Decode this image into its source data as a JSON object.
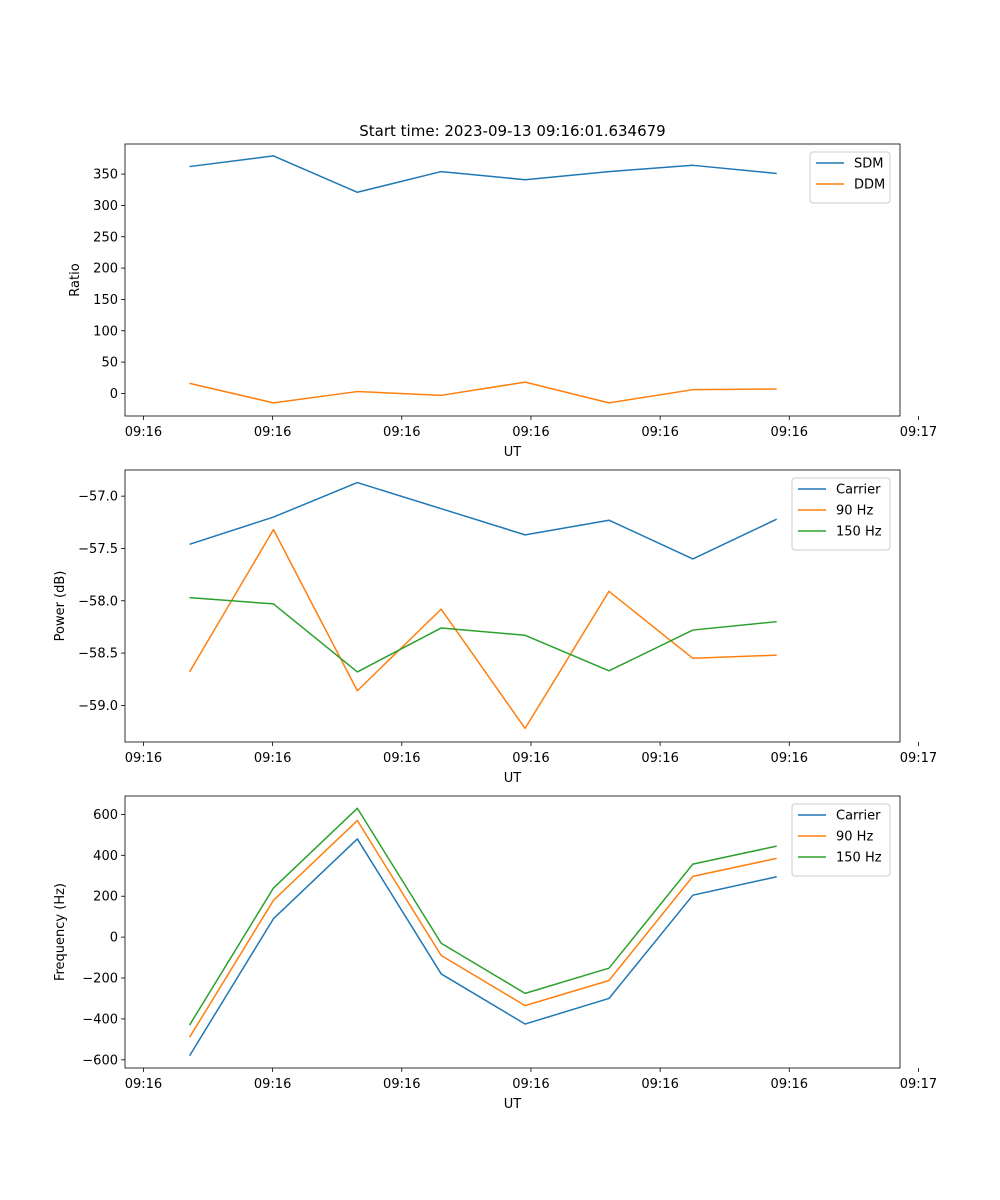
{
  "figure": {
    "title": "Start time: 2023-09-13 09:16:01.634679"
  },
  "chart_data": [
    {
      "type": "line",
      "title": "Start time: 2023-09-13 09:16:01.634679",
      "xlabel": "UT",
      "ylabel": "Ratio",
      "x": [
        1,
        2,
        3,
        4,
        5,
        6,
        7,
        8
      ],
      "xlim": [
        0.23,
        9.47
      ],
      "x_ticks": [
        0.45,
        1.99,
        3.53,
        5.07,
        6.61,
        8.15,
        9.69
      ],
      "x_tick_labels": [
        "09:16",
        "09:16",
        "09:16",
        "09:16",
        "09:16",
        "09:16",
        "09:17"
      ],
      "ylim": [
        -36,
        398
      ],
      "y_ticks": [
        0,
        50,
        100,
        150,
        200,
        250,
        300,
        350
      ],
      "y_tick_labels": [
        "0",
        "50",
        "100",
        "150",
        "200",
        "250",
        "300",
        "350"
      ],
      "legend_position": "top-right",
      "series": [
        {
          "name": "SDM",
          "color": "#1f77b4",
          "values": [
            362,
            379,
            321,
            354,
            341,
            354,
            364,
            351
          ]
        },
        {
          "name": "DDM",
          "color": "#ff7f0e",
          "values": [
            16,
            -15,
            3,
            -3,
            18,
            -15,
            6,
            7
          ]
        }
      ]
    },
    {
      "type": "line",
      "title": "",
      "xlabel": "UT",
      "ylabel": "Power (dB)",
      "x": [
        1,
        2,
        3,
        4,
        5,
        6,
        7,
        8
      ],
      "xlim": [
        0.23,
        9.47
      ],
      "x_ticks": [
        0.45,
        1.99,
        3.53,
        5.07,
        6.61,
        8.15,
        9.69
      ],
      "x_tick_labels": [
        "09:16",
        "09:16",
        "09:16",
        "09:16",
        "09:16",
        "09:16",
        "09:17"
      ],
      "ylim": [
        -59.35,
        -56.75
      ],
      "y_ticks": [
        -59.0,
        -58.5,
        -58.0,
        -57.5,
        -57.0
      ],
      "y_tick_labels": [
        "−59.0",
        "−58.5",
        "−58.0",
        "−57.5",
        "−57.0"
      ],
      "legend_position": "top-right",
      "series": [
        {
          "name": "Carrier",
          "color": "#1f77b4",
          "values": [
            -57.46,
            -57.2,
            -56.87,
            -57.12,
            -57.37,
            -57.23,
            -57.6,
            -57.22
          ]
        },
        {
          "name": "90 Hz",
          "color": "#ff7f0e",
          "values": [
            -58.68,
            -57.32,
            -58.86,
            -58.08,
            -59.22,
            -57.91,
            -58.55,
            -58.52
          ]
        },
        {
          "name": "150 Hz",
          "color": "#2ca02c",
          "values": [
            -57.97,
            -58.03,
            -58.68,
            -58.26,
            -58.33,
            -58.67,
            -58.28,
            -58.2
          ]
        }
      ]
    },
    {
      "type": "line",
      "title": "",
      "xlabel": "UT",
      "ylabel": "Frequency (Hz)",
      "x": [
        1,
        2,
        3,
        4,
        5,
        6,
        7,
        8
      ],
      "xlim": [
        0.23,
        9.47
      ],
      "x_ticks": [
        0.45,
        1.99,
        3.53,
        5.07,
        6.61,
        8.15,
        9.69
      ],
      "x_tick_labels": [
        "09:16",
        "09:16",
        "09:16",
        "09:16",
        "09:16",
        "09:16",
        "09:17"
      ],
      "ylim": [
        -640,
        690
      ],
      "y_ticks": [
        -600,
        -400,
        -200,
        0,
        200,
        400,
        600
      ],
      "y_tick_labels": [
        "−600",
        "−400",
        "−200",
        "0",
        "200",
        "400",
        "600"
      ],
      "legend_position": "top-right",
      "series": [
        {
          "name": "Carrier",
          "color": "#1f77b4",
          "values": [
            -580,
            90,
            480,
            -180,
            -425,
            -300,
            205,
            295
          ]
        },
        {
          "name": "90 Hz",
          "color": "#ff7f0e",
          "values": [
            -490,
            180,
            570,
            -90,
            -335,
            -212,
            297,
            385
          ]
        },
        {
          "name": "150 Hz",
          "color": "#2ca02c",
          "values": [
            -430,
            240,
            630,
            -30,
            -275,
            -152,
            357,
            445
          ]
        }
      ]
    }
  ]
}
